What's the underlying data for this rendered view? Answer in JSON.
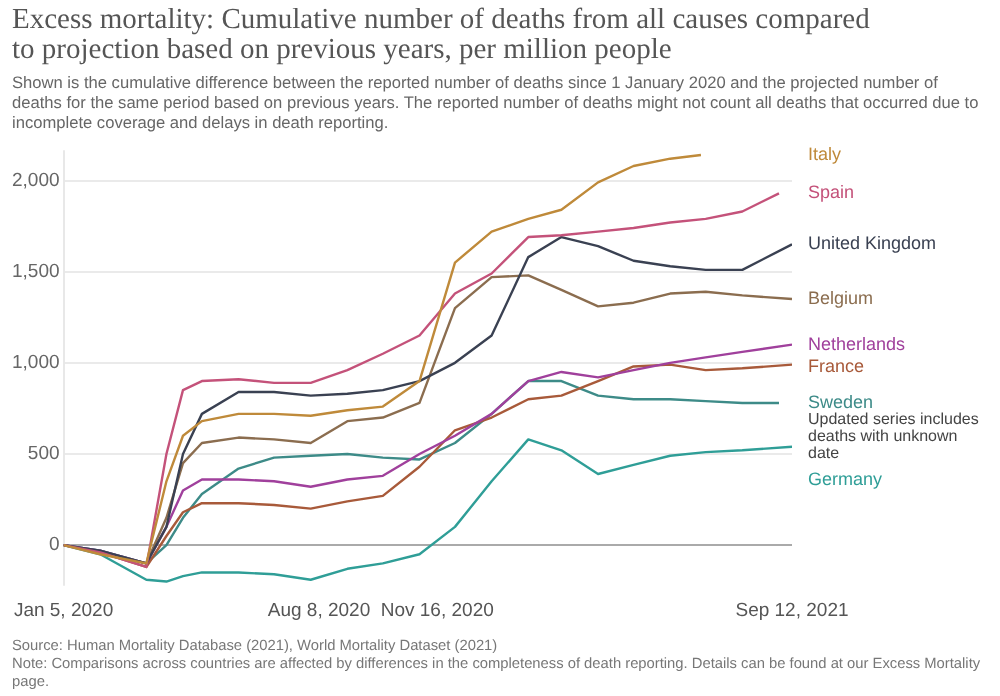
{
  "chart_data": {
    "type": "line",
    "title": "Excess mortality: Cumulative number of deaths from all causes compared to projection based on previous years, per million people",
    "subtitle": "Shown is the cumulative difference between the reported number of deaths since 1 January 2020 and the projected number of deaths for the same period based on previous years. The reported number of deaths might not count all deaths that occurred due to incomplete coverage and delays in death reporting.",
    "x": [
      "2020-01-05",
      "2020-02-05",
      "2020-03-15",
      "2020-04-01",
      "2020-04-15",
      "2020-05-01",
      "2020-06-01",
      "2020-07-01",
      "2020-08-01",
      "2020-09-01",
      "2020-10-01",
      "2020-11-01",
      "2020-12-01",
      "2021-01-01",
      "2021-02-01",
      "2021-03-01",
      "2021-04-01",
      "2021-05-01",
      "2021-06-01",
      "2021-07-01",
      "2021-08-01",
      "2021-09-12"
    ],
    "series": [
      {
        "name": "Italy",
        "color": "#bf8a3a",
        "x": [
          "2020-01-05",
          "2020-02-05",
          "2020-03-15",
          "2020-04-01",
          "2020-04-15",
          "2020-05-01",
          "2020-06-01",
          "2020-07-01",
          "2020-08-01",
          "2020-09-01",
          "2020-10-01",
          "2020-11-01",
          "2020-12-01",
          "2021-01-01",
          "2021-02-01",
          "2021-03-01",
          "2021-04-01",
          "2021-05-01",
          "2021-06-01",
          "2021-06-27"
        ],
        "values": [
          0,
          -50,
          -100,
          350,
          600,
          680,
          720,
          720,
          710,
          740,
          760,
          900,
          1550,
          1720,
          1790,
          1840,
          1990,
          2080,
          2120,
          2140
        ]
      },
      {
        "name": "Spain",
        "color": "#c4527a",
        "x": [
          "2020-01-05",
          "2020-02-05",
          "2020-03-15",
          "2020-04-01",
          "2020-04-15",
          "2020-05-01",
          "2020-06-01",
          "2020-07-01",
          "2020-08-01",
          "2020-09-01",
          "2020-10-01",
          "2020-11-01",
          "2020-12-01",
          "2021-01-01",
          "2021-02-01",
          "2021-03-01",
          "2021-04-01",
          "2021-05-01",
          "2021-06-01",
          "2021-07-01",
          "2021-08-01",
          "2021-09-01"
        ],
        "values": [
          0,
          -40,
          -120,
          500,
          850,
          900,
          910,
          890,
          890,
          960,
          1050,
          1150,
          1380,
          1490,
          1690,
          1700,
          1720,
          1740,
          1770,
          1790,
          1830,
          1930
        ]
      },
      {
        "name": "United Kingdom",
        "color": "#3a4152",
        "values": [
          0,
          -30,
          -100,
          100,
          500,
          720,
          840,
          840,
          820,
          830,
          850,
          900,
          1000,
          1150,
          1580,
          1690,
          1640,
          1560,
          1530,
          1510,
          1510,
          1650
        ]
      },
      {
        "name": "Belgium",
        "color": "#8b6d4f",
        "values": [
          0,
          -40,
          -100,
          150,
          450,
          560,
          590,
          580,
          560,
          680,
          700,
          780,
          1300,
          1470,
          1480,
          1400,
          1310,
          1330,
          1380,
          1390,
          1370,
          1350
        ]
      },
      {
        "name": "Netherlands",
        "color": "#a0409c",
        "values": [
          0,
          -30,
          -100,
          100,
          300,
          360,
          360,
          350,
          320,
          360,
          380,
          500,
          600,
          720,
          900,
          950,
          920,
          960,
          1000,
          1030,
          1060,
          1100
        ]
      },
      {
        "name": "France",
        "color": "#a85a3a",
        "values": [
          0,
          -40,
          -120,
          50,
          180,
          230,
          230,
          220,
          200,
          240,
          270,
          430,
          630,
          700,
          800,
          820,
          900,
          980,
          990,
          960,
          970,
          990
        ]
      },
      {
        "name": "Sweden",
        "color": "#3d8b88",
        "x": [
          "2020-01-05",
          "2020-02-05",
          "2020-03-15",
          "2020-04-01",
          "2020-04-15",
          "2020-05-01",
          "2020-06-01",
          "2020-07-01",
          "2020-08-01",
          "2020-09-01",
          "2020-10-01",
          "2020-11-01",
          "2020-12-01",
          "2021-01-01",
          "2021-02-01",
          "2021-03-01",
          "2021-04-01",
          "2021-05-01",
          "2021-06-01",
          "2021-07-01",
          "2021-08-01",
          "2021-09-01"
        ],
        "values": [
          0,
          -30,
          -100,
          0,
          150,
          280,
          420,
          480,
          490,
          500,
          480,
          470,
          560,
          720,
          900,
          900,
          820,
          800,
          800,
          790,
          780,
          780
        ]
      },
      {
        "name": "Germany",
        "color": "#2f9e97",
        "values": [
          0,
          -50,
          -190,
          -200,
          -170,
          -150,
          -150,
          -160,
          -190,
          -130,
          -100,
          -50,
          100,
          350,
          580,
          520,
          390,
          440,
          490,
          510,
          520,
          540
        ]
      }
    ],
    "xlim": [
      "2020-01-05",
      "2021-09-12"
    ],
    "xticks": [
      {
        "value": "2020-01-05",
        "label": "Jan 5, 2020"
      },
      {
        "value": "2020-08-08",
        "label": "Aug 8, 2020"
      },
      {
        "value": "2020-11-16",
        "label": "Nov 16, 2020"
      },
      {
        "value": "2021-09-12",
        "label": "Sep 12, 2021"
      }
    ],
    "ylim": [
      -220,
      2160
    ],
    "yticks": [
      0,
      500,
      {
        "value": 1000,
        "label": "1,000"
      },
      {
        "value": 1500,
        "label": "1,500"
      },
      {
        "value": 2000,
        "label": "2,000"
      }
    ],
    "grid": "y",
    "ref_lines": [
      {
        "axis": "y",
        "value": 0,
        "color": "#aaaaaa"
      }
    ],
    "marker": "none",
    "line_style": "solid",
    "legend": false,
    "annotations": [
      {
        "text": "Updated series includes deaths with unknown date",
        "x": "2021-09-01",
        "y": 780
      },
      "Source: Human Mortality Database (2021), World Mortality Dataset (2021)",
      "Note: Comparisons across countries are affected by differences in the completeness of death reporting. Details can be found at our Excess Mortality page."
    ]
  }
}
